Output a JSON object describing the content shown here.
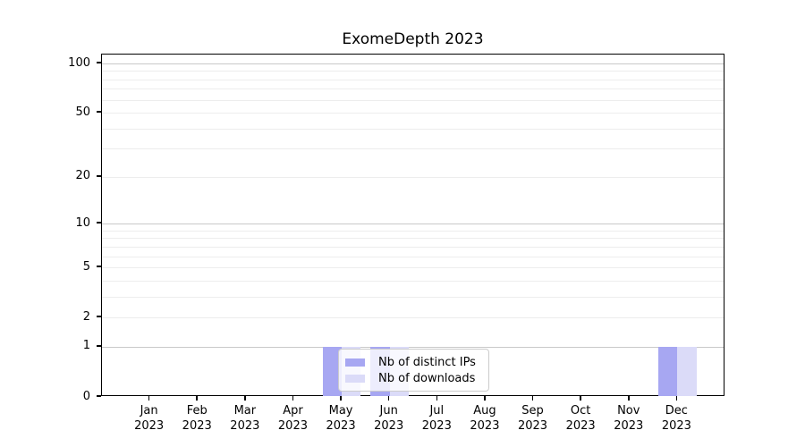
{
  "chart_data": {
    "type": "bar",
    "title": "ExomeDepth 2023",
    "categories": [
      "Jan 2023",
      "Feb 2023",
      "Mar 2023",
      "Apr 2023",
      "May 2023",
      "Jun 2023",
      "Jul 2023",
      "Aug 2023",
      "Sep 2023",
      "Oct 2023",
      "Nov 2023",
      "Dec 2023"
    ],
    "series": [
      {
        "name": "Nb of distinct IPs",
        "color": "#a7a7f2",
        "values": [
          0,
          0,
          0,
          0,
          1,
          1,
          0,
          0,
          0,
          0,
          0,
          1
        ]
      },
      {
        "name": "Nb of downloads",
        "color": "#dbdbf8",
        "values": [
          0,
          0,
          0,
          0,
          1,
          1,
          0,
          0,
          0,
          0,
          0,
          1
        ]
      }
    ],
    "xlabel": "",
    "ylabel": "",
    "yscale": "log1p",
    "ylim": [
      0,
      100
    ],
    "yticks": [
      0,
      1,
      2,
      5,
      10,
      20,
      50,
      100
    ],
    "major_gridlines": [
      1,
      10,
      100
    ],
    "minor_gridlines": [
      2,
      3,
      4,
      5,
      6,
      7,
      8,
      9,
      20,
      30,
      40,
      50,
      60,
      70,
      80,
      90
    ],
    "grid": true,
    "legend_position": "lower center",
    "colors": {
      "major_grid": "#c9c9c9",
      "minor_grid": "#ededed",
      "axis": "#000000",
      "background": "#ffffff"
    }
  }
}
